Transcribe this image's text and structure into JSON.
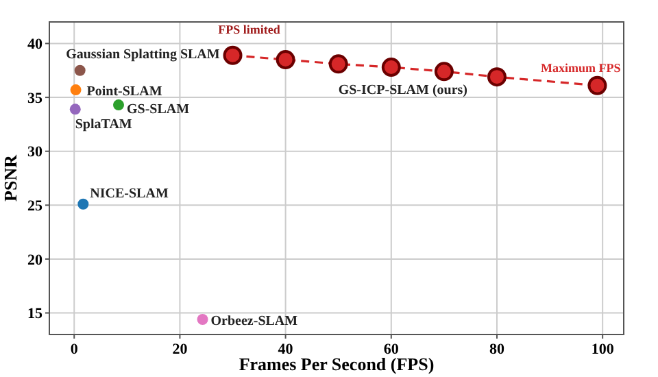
{
  "chart_data": {
    "type": "scatter",
    "xlabel": "Frames Per Second (FPS)",
    "ylabel": "PSNR",
    "xlim": [
      -4.7,
      104
    ],
    "ylim": [
      13,
      42
    ],
    "xticks": [
      0,
      20,
      40,
      60,
      80,
      100
    ],
    "yticks": [
      15,
      20,
      25,
      30,
      35,
      40
    ],
    "grid": true,
    "marker": "circle",
    "series": [
      {
        "name": "Gaussian Splatting SLAM",
        "color": "#8c564b",
        "x": [
          1.1
        ],
        "values": [
          37.5
        ]
      },
      {
        "name": "Point-SLAM",
        "color": "#ff7f0e",
        "x": [
          0.3
        ],
        "values": [
          35.7
        ]
      },
      {
        "name": "SplaTAM",
        "color": "#9467bd",
        "x": [
          0.2
        ],
        "values": [
          33.9
        ]
      },
      {
        "name": "GS-SLAM",
        "color": "#2ca02c",
        "x": [
          8.4
        ],
        "values": [
          34.3
        ]
      },
      {
        "name": "NICE-SLAM",
        "color": "#1f77b4",
        "x": [
          1.7
        ],
        "values": [
          25.1
        ]
      },
      {
        "name": "Orbeez-SLAM",
        "color": "#e377c2",
        "x": [
          24.3
        ],
        "values": [
          14.4
        ]
      },
      {
        "name": "GS-ICP-SLAM (ours)",
        "type": "line",
        "line_style": "dashed",
        "color": "#d62728",
        "x": [
          30,
          40,
          50,
          60,
          70,
          80,
          99
        ],
        "values": [
          38.9,
          38.5,
          38.1,
          37.8,
          37.4,
          36.9,
          36.1
        ]
      }
    ],
    "annotations": [
      {
        "text": "FPS limited",
        "x": 30,
        "y": 38.9
      },
      {
        "text": "Maximum FPS",
        "x": 99,
        "y": 36.1
      }
    ]
  }
}
